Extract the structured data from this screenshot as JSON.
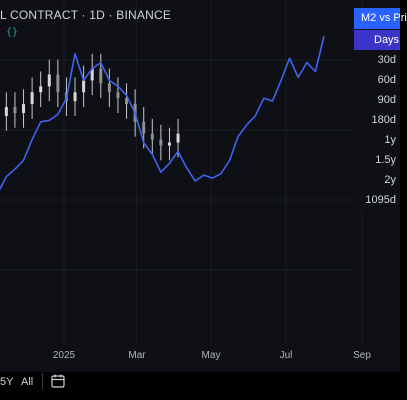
{
  "header": {
    "title": "L CONTRACT · 1D · BINANCE",
    "indicator_icon": "{}"
  },
  "legend": {
    "label": "M2 vs Pri"
  },
  "menu": {
    "items": [
      "Days",
      "30d",
      "60d",
      "90d",
      "180d",
      "1y",
      "1.5y",
      "2y",
      "1095d"
    ],
    "selected_index": 0
  },
  "bottom_bar": {
    "range_5y": "5Y",
    "range_all": "All",
    "date_range_icon": "calendar-icon"
  },
  "colors": {
    "background": "#0e1016",
    "m2_line": "#3f63f0",
    "price_candles": "#c8c8c8",
    "accent": "#2962ff"
  },
  "chart_data": {
    "type": "line",
    "x_ticks": [
      "2025",
      "Mar",
      "May",
      "Jul",
      "Sep"
    ],
    "x_tick_dates": [
      "2025-01-01",
      "2025-03-01",
      "2025-05-01",
      "2025-07-01",
      "2025-09-01"
    ],
    "grid": true,
    "legend_placement": "top-right",
    "series": [
      {
        "style": "line",
        "x": [
          "2024-10-25",
          "2024-11-01",
          "2024-11-08",
          "2024-11-15",
          "2024-11-22",
          "2024-11-29",
          "2024-12-06",
          "2024-12-13",
          "2024-12-20",
          "2024-12-27",
          "2025-01-03",
          "2025-01-10",
          "2025-01-17",
          "2025-01-24",
          "2025-01-31",
          "2025-02-07",
          "2025-02-14",
          "2025-02-21",
          "2025-02-28",
          "2025-03-07",
          "2025-03-14",
          "2025-03-21",
          "2025-03-28",
          "2025-04-04",
          "2025-04-11",
          "2025-04-18",
          "2025-04-25",
          "2025-05-02",
          "2025-05-09",
          "2025-05-16",
          "2025-05-23",
          "2025-05-30",
          "2025-06-06",
          "2025-06-13",
          "2025-06-20",
          "2025-06-27",
          "2025-07-04",
          "2025-07-11",
          "2025-07-18",
          "2025-07-25",
          "2025-08-01"
        ],
        "y": [
          40,
          38,
          44,
          55,
          60,
          66,
          80,
          92,
          93,
          97,
          108,
          138,
          120,
          128,
          132,
          120,
          116,
          110,
          98,
          78,
          70,
          58,
          64,
          72,
          61,
          52,
          56,
          54,
          57,
          66,
          82,
          90,
          96,
          108,
          106,
          120,
          135,
          122,
          132,
          126,
          150
        ]
      },
      {
        "style": "candlestick",
        "x": [
          "2024-10-25",
          "2024-11-01",
          "2024-11-08",
          "2024-11-15",
          "2024-11-22",
          "2024-11-29",
          "2024-12-06",
          "2024-12-13",
          "2024-12-20",
          "2024-12-27",
          "2025-01-03",
          "2025-01-10",
          "2025-01-17",
          "2025-01-24",
          "2025-01-31",
          "2025-02-07",
          "2025-02-14",
          "2025-02-21",
          "2025-02-28",
          "2025-03-07",
          "2025-03-14",
          "2025-03-21",
          "2025-03-28",
          "2025-04-04"
        ],
        "y": [
          82,
          88,
          96,
          102,
          98,
          104,
          112,
          116,
          124,
          112,
          106,
          112,
          120,
          128,
          118,
          112,
          108,
          104,
          92,
          84,
          80,
          76,
          78,
          84
        ]
      }
    ]
  }
}
